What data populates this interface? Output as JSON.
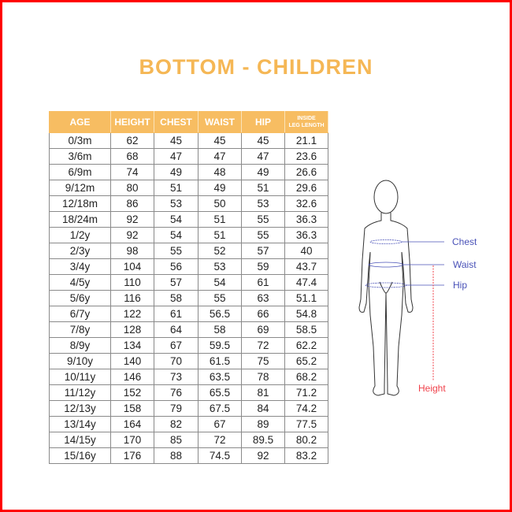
{
  "title": "BOTTOM - CHILDREN",
  "table": {
    "headers": [
      "AGE",
      "HEIGHT",
      "CHEST",
      "WAIST",
      "HIP",
      "INSIDE LEG LENGTH"
    ],
    "rows": [
      [
        "0/3m",
        "62",
        "45",
        "45",
        "45",
        "21.1"
      ],
      [
        "3/6m",
        "68",
        "47",
        "47",
        "47",
        "23.6"
      ],
      [
        "6/9m",
        "74",
        "49",
        "48",
        "49",
        "26.6"
      ],
      [
        "9/12m",
        "80",
        "51",
        "49",
        "51",
        "29.6"
      ],
      [
        "12/18m",
        "86",
        "53",
        "50",
        "53",
        "32.6"
      ],
      [
        "18/24m",
        "92",
        "54",
        "51",
        "55",
        "36.3"
      ],
      [
        "1/2y",
        "92",
        "54",
        "51",
        "55",
        "36.3"
      ],
      [
        "2/3y",
        "98",
        "55",
        "52",
        "57",
        "40"
      ],
      [
        "3/4y",
        "104",
        "56",
        "53",
        "59",
        "43.7"
      ],
      [
        "4/5y",
        "110",
        "57",
        "54",
        "61",
        "47.4"
      ],
      [
        "5/6y",
        "116",
        "58",
        "55",
        "63",
        "51.1"
      ],
      [
        "6/7y",
        "122",
        "61",
        "56.5",
        "66",
        "54.8"
      ],
      [
        "7/8y",
        "128",
        "64",
        "58",
        "69",
        "58.5"
      ],
      [
        "8/9y",
        "134",
        "67",
        "59.5",
        "72",
        "62.2"
      ],
      [
        "9/10y",
        "140",
        "70",
        "61.5",
        "75",
        "65.2"
      ],
      [
        "10/11y",
        "146",
        "73",
        "63.5",
        "78",
        "68.2"
      ],
      [
        "11/12y",
        "152",
        "76",
        "65.5",
        "81",
        "71.2"
      ],
      [
        "12/13y",
        "158",
        "79",
        "67.5",
        "84",
        "74.2"
      ],
      [
        "13/14y",
        "164",
        "82",
        "67",
        "89",
        "77.5"
      ],
      [
        "14/15y",
        "170",
        "85",
        "72",
        "89.5",
        "80.2"
      ],
      [
        "15/16y",
        "176",
        "88",
        "74.5",
        "92",
        "83.2"
      ]
    ]
  },
  "figure": {
    "labels": {
      "chest": "Chest",
      "waist": "Waist",
      "hip": "Hip",
      "height": "Height"
    },
    "colors": {
      "measure": "#4a52b8",
      "height": "#f0404a",
      "accent": "#f7bd62"
    }
  }
}
